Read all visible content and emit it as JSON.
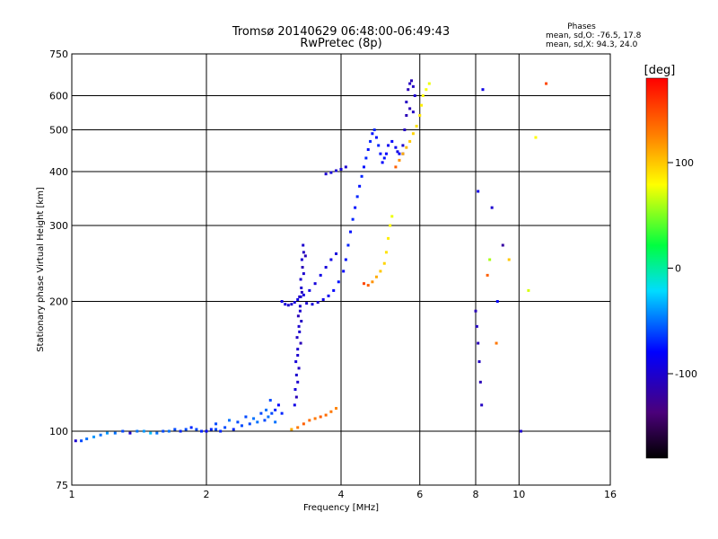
{
  "chart_data": {
    "type": "scatter",
    "title": "Tromsø 20140629 06:48:00-06:49:43",
    "subtitle": "RwPretec (8p)",
    "xlabel": "Frequency [MHz]",
    "ylabel": "Stationary phase Virtual Height [km]",
    "x_scale": "log",
    "y_scale": "log",
    "xlim": [
      1,
      16
    ],
    "ylim": [
      75,
      750
    ],
    "x_ticks": [
      1,
      2,
      4,
      6,
      8,
      10,
      16
    ],
    "x_tick_labels": [
      "1",
      "2",
      "4",
      "6",
      "8",
      "10",
      "16"
    ],
    "y_ticks": [
      75,
      100,
      200,
      300,
      400,
      500,
      600,
      750
    ],
    "y_tick_labels": [
      "75",
      "100",
      "200",
      "300",
      "400",
      "500",
      "600",
      "750"
    ],
    "grid": true,
    "phase_stats": {
      "heading": "Phases",
      "line_o": "mean, sd,O: -76.5, 17.8",
      "line_x": "mean, sd,X:  94.3, 24.0"
    },
    "colorbar": {
      "label": "[deg]",
      "range": [
        -180,
        180
      ],
      "ticks": [
        100,
        0,
        -100
      ],
      "tick_labels": [
        "100",
        "0",
        "-100"
      ],
      "colormap": "rainbow"
    },
    "series": [
      {
        "points": [
          [
            1.02,
            95,
            -100
          ],
          [
            1.05,
            95,
            -60
          ],
          [
            1.08,
            96,
            -50
          ],
          [
            1.12,
            97,
            -40
          ],
          [
            1.16,
            98,
            -50
          ],
          [
            1.2,
            99,
            -40
          ],
          [
            1.25,
            99,
            -50
          ],
          [
            1.3,
            100,
            -60
          ],
          [
            1.35,
            99,
            -100
          ],
          [
            1.4,
            100,
            -50
          ],
          [
            1.45,
            100,
            -40
          ],
          [
            1.5,
            99,
            -30
          ],
          [
            1.55,
            99,
            -50
          ],
          [
            1.6,
            100,
            -60
          ],
          [
            1.65,
            100,
            -50
          ],
          [
            1.7,
            101,
            -60
          ],
          [
            1.75,
            100,
            -70
          ],
          [
            1.8,
            101,
            -60
          ],
          [
            1.85,
            102,
            -70
          ],
          [
            1.9,
            101,
            -60
          ],
          [
            1.95,
            100,
            -70
          ],
          [
            2.0,
            100,
            -80
          ],
          [
            2.05,
            101,
            -70
          ],
          [
            2.1,
            101,
            -60
          ],
          [
            2.15,
            100,
            -70
          ],
          [
            2.2,
            102,
            -60
          ],
          [
            2.3,
            101,
            -70
          ],
          [
            2.4,
            103,
            -60
          ],
          [
            2.5,
            104,
            -60
          ],
          [
            2.6,
            105,
            -50
          ],
          [
            2.7,
            106,
            -60
          ],
          [
            2.75,
            108,
            -50
          ],
          [
            2.8,
            110,
            -60
          ],
          [
            2.85,
            112,
            -70
          ],
          [
            2.9,
            115,
            -80
          ],
          [
            2.95,
            110,
            -70
          ],
          [
            2.1,
            104,
            -60
          ],
          [
            2.25,
            106,
            -50
          ],
          [
            2.35,
            105,
            -60
          ],
          [
            2.45,
            108,
            -60
          ],
          [
            2.55,
            107,
            -50
          ],
          [
            2.65,
            110,
            -60
          ],
          [
            2.72,
            112,
            -50
          ],
          [
            2.78,
            118,
            -60
          ],
          [
            2.85,
            105,
            -50
          ]
        ]
      },
      {
        "points": [
          [
            3.15,
            115,
            -90
          ],
          [
            3.16,
            125,
            -95
          ],
          [
            3.18,
            135,
            -100
          ],
          [
            3.17,
            145,
            -95
          ],
          [
            3.2,
            155,
            -100
          ],
          [
            3.19,
            165,
            -105
          ],
          [
            3.22,
            175,
            -100
          ],
          [
            3.21,
            185,
            -110
          ],
          [
            3.24,
            195,
            -100
          ],
          [
            3.23,
            205,
            -105
          ],
          [
            3.26,
            215,
            -100
          ],
          [
            3.25,
            225,
            -100
          ],
          [
            3.28,
            240,
            -110
          ],
          [
            3.27,
            250,
            -100
          ],
          [
            3.3,
            260,
            -105
          ],
          [
            3.29,
            270,
            -100
          ],
          [
            3.33,
            255,
            -110
          ],
          [
            3.3,
            232,
            -100
          ],
          [
            3.27,
            210,
            -105
          ],
          [
            3.24,
            190,
            -100
          ],
          [
            3.18,
            120,
            -110
          ],
          [
            3.2,
            130,
            -100
          ],
          [
            3.22,
            140,
            -105
          ],
          [
            3.2,
            150,
            -100
          ],
          [
            3.25,
            160,
            -110
          ],
          [
            3.23,
            170,
            -100
          ],
          [
            3.26,
            180,
            -105
          ]
        ]
      },
      {
        "points": [
          [
            2.95,
            200,
            -90
          ],
          [
            3.0,
            197,
            -95
          ],
          [
            3.05,
            196,
            -100
          ],
          [
            3.1,
            197,
            -100
          ],
          [
            3.15,
            199,
            -95
          ],
          [
            3.2,
            202,
            -90
          ],
          [
            3.25,
            205,
            -100
          ],
          [
            3.3,
            207,
            -95
          ],
          [
            3.4,
            212,
            -90
          ],
          [
            3.5,
            220,
            -95
          ],
          [
            3.6,
            230,
            -90
          ],
          [
            3.7,
            240,
            -95
          ],
          [
            3.8,
            250,
            -90
          ],
          [
            3.9,
            258,
            -95
          ]
        ]
      },
      {
        "points": [
          [
            3.35,
            198,
            -100
          ],
          [
            3.45,
            197,
            -95
          ],
          [
            3.55,
            199,
            -100
          ],
          [
            3.65,
            202,
            -90
          ],
          [
            3.75,
            206,
            -85
          ],
          [
            3.85,
            212,
            -80
          ],
          [
            3.95,
            222,
            -75
          ],
          [
            4.05,
            235,
            -80
          ],
          [
            4.1,
            250,
            -75
          ],
          [
            4.15,
            270,
            -70
          ],
          [
            4.2,
            290,
            -75
          ],
          [
            4.25,
            310,
            -70
          ],
          [
            4.3,
            330,
            -75
          ],
          [
            4.35,
            350,
            -70
          ],
          [
            4.4,
            370,
            -75
          ],
          [
            4.45,
            390,
            -70
          ],
          [
            4.5,
            410,
            -75
          ],
          [
            4.55,
            430,
            -70
          ],
          [
            4.6,
            450,
            -75
          ],
          [
            4.65,
            470,
            -70
          ],
          [
            4.7,
            490,
            -75
          ],
          [
            4.75,
            500,
            -70
          ],
          [
            4.8,
            480,
            -75
          ],
          [
            4.85,
            460,
            -70
          ],
          [
            4.9,
            440,
            -75
          ],
          [
            4.95,
            420,
            -80
          ],
          [
            5.0,
            430,
            -75
          ],
          [
            5.05,
            440,
            -80
          ],
          [
            5.1,
            460,
            -85
          ],
          [
            5.2,
            470,
            -80
          ],
          [
            5.3,
            455,
            -85
          ],
          [
            5.35,
            445,
            -90
          ],
          [
            5.4,
            440,
            -85
          ],
          [
            5.5,
            440,
            -90
          ]
        ]
      },
      {
        "points": [
          [
            5.5,
            460,
            -100
          ],
          [
            5.55,
            500,
            -105
          ],
          [
            5.6,
            540,
            -110
          ],
          [
            5.6,
            580,
            -105
          ],
          [
            5.65,
            620,
            -110
          ],
          [
            5.7,
            640,
            -105
          ],
          [
            5.75,
            650,
            -110
          ],
          [
            5.8,
            630,
            -105
          ],
          [
            5.85,
            600,
            -100
          ],
          [
            5.7,
            560,
            -110
          ],
          [
            5.8,
            550,
            -105
          ]
        ]
      },
      {
        "points": [
          [
            4.5,
            220,
            150
          ],
          [
            4.6,
            218,
            140
          ],
          [
            4.7,
            222,
            120
          ],
          [
            4.8,
            228,
            110
          ],
          [
            4.9,
            235,
            100
          ],
          [
            5.0,
            245,
            95
          ],
          [
            5.05,
            260,
            90
          ],
          [
            5.1,
            280,
            85
          ],
          [
            5.15,
            300,
            80
          ],
          [
            5.2,
            315,
            75
          ]
        ]
      },
      {
        "points": [
          [
            5.3,
            410,
            140
          ],
          [
            5.4,
            425,
            120
          ],
          [
            5.5,
            440,
            110
          ],
          [
            5.6,
            455,
            105
          ],
          [
            5.7,
            470,
            100
          ],
          [
            5.8,
            490,
            95
          ],
          [
            5.9,
            510,
            90
          ],
          [
            6.0,
            540,
            88
          ],
          [
            6.05,
            570,
            85
          ],
          [
            6.1,
            600,
            80
          ],
          [
            6.2,
            620,
            78
          ],
          [
            6.3,
            640,
            75
          ]
        ]
      },
      {
        "points": [
          [
            3.2,
            102,
            130
          ],
          [
            3.3,
            104,
            140
          ],
          [
            3.4,
            106,
            135
          ],
          [
            3.5,
            107,
            130
          ],
          [
            3.6,
            108,
            140
          ],
          [
            3.7,
            109,
            135
          ],
          [
            3.8,
            111,
            130
          ],
          [
            3.9,
            113,
            125
          ],
          [
            3.1,
            101,
            110
          ]
        ]
      },
      {
        "points": [
          [
            3.7,
            395,
            -100
          ],
          [
            3.8,
            398,
            -95
          ],
          [
            3.9,
            402,
            -100
          ],
          [
            4.0,
            405,
            -95
          ],
          [
            4.1,
            410,
            -100
          ]
        ]
      },
      {
        "points": [
          [
            8.0,
            190,
            -110
          ],
          [
            8.05,
            175,
            -105
          ],
          [
            8.1,
            160,
            -110
          ],
          [
            8.15,
            145,
            -105
          ],
          [
            8.2,
            130,
            -110
          ],
          [
            8.25,
            115,
            -105
          ],
          [
            8.1,
            360,
            -90
          ],
          [
            8.5,
            230,
            140
          ],
          [
            8.6,
            250,
            60
          ],
          [
            8.7,
            330,
            -100
          ],
          [
            8.9,
            160,
            130
          ],
          [
            8.95,
            200,
            -80
          ],
          [
            9.5,
            250,
            100
          ],
          [
            10.1,
            100,
            -100
          ],
          [
            10.5,
            212,
            70
          ],
          [
            11.5,
            640,
            150
          ],
          [
            10.9,
            480,
            80
          ],
          [
            9.2,
            270,
            -120
          ],
          [
            8.3,
            620,
            -90
          ]
        ]
      }
    ]
  }
}
